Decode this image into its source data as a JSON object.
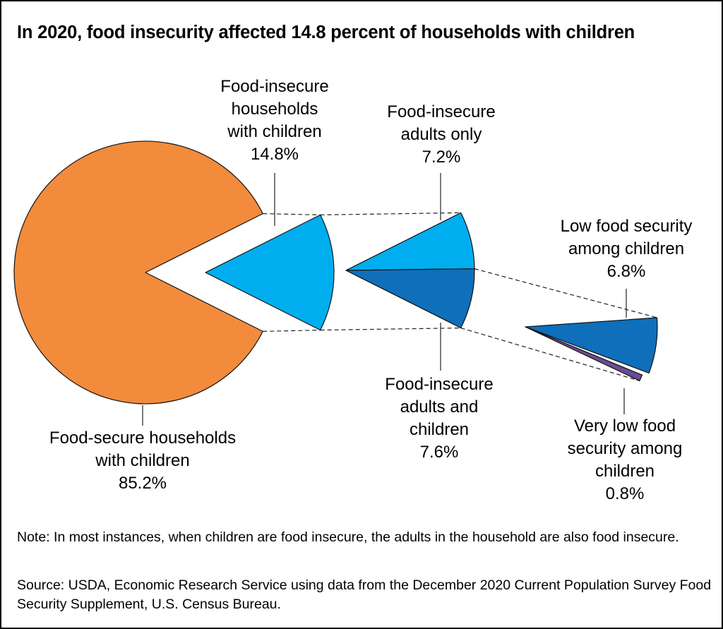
{
  "chart_data": {
    "type": "pie",
    "title": "In 2020, food insecurity affected 14.8 percent of households with children",
    "slices": [
      {
        "label": [
          "Food-secure households",
          "with children"
        ],
        "value": 85.2,
        "value_text": "85.2%",
        "color": "#f28b3c"
      },
      {
        "label": [
          "Food-insecure",
          "households",
          "with children"
        ],
        "value": 14.8,
        "value_text": "14.8%",
        "color": "#00aeef"
      }
    ],
    "breakdown_level_1": [
      {
        "label": [
          "Food-insecure",
          "adults only"
        ],
        "value": 7.2,
        "value_text": "7.2%",
        "color": "#00aeef"
      },
      {
        "label": [
          "Food-insecure",
          "adults and",
          "children"
        ],
        "value": 7.6,
        "value_text": "7.6%",
        "color": "#0f6fba"
      }
    ],
    "breakdown_level_2": [
      {
        "label": [
          "Low food security",
          "among children"
        ],
        "value": 6.8,
        "value_text": "6.8%",
        "color": "#0f6fba"
      },
      {
        "label": [
          "Very low food",
          "security among",
          "children"
        ],
        "value": 0.8,
        "value_text": "0.8%",
        "color": "#6a4c93"
      }
    ]
  },
  "notes": {
    "note": "Note: In most instances, when children are food insecure, the adults in the household are also food insecure.",
    "source": "Source: USDA, Economic Research Service using data from the December 2020 Current Population Survey Food Security Supplement, U.S. Census Bureau."
  }
}
